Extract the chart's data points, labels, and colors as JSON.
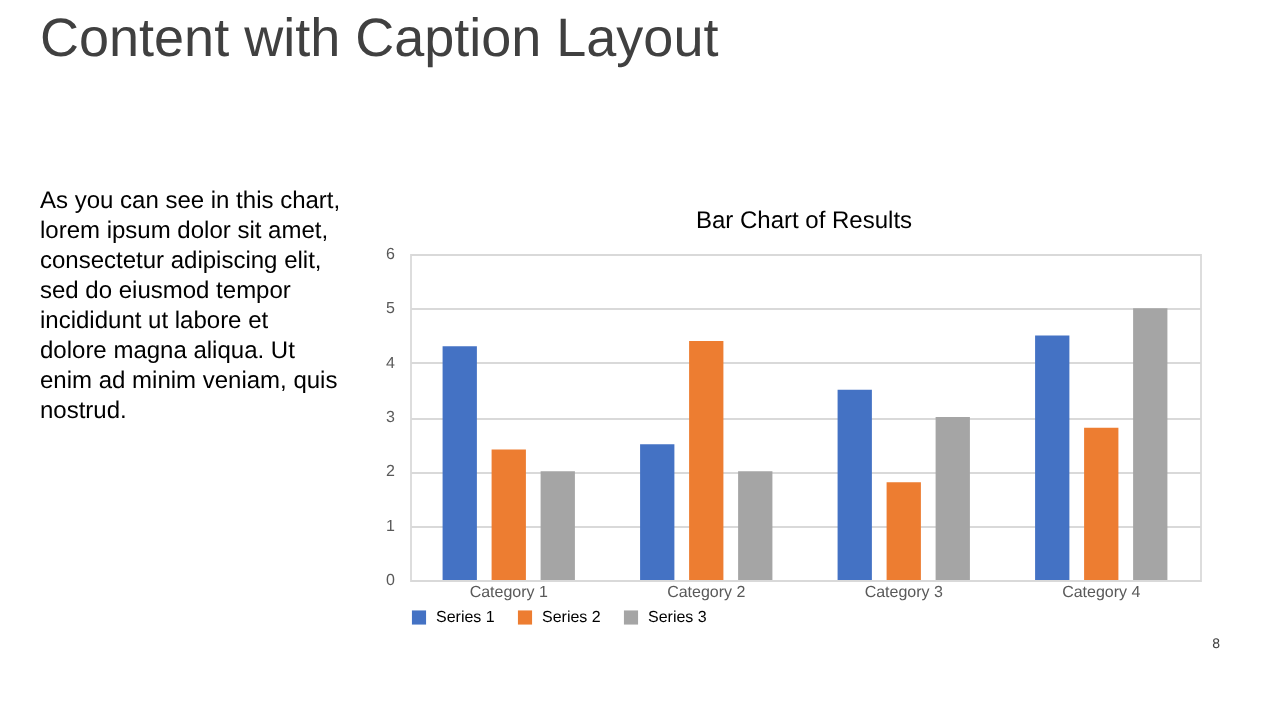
{
  "chart_data": {
    "type": "bar",
    "title": "Bar Chart of Results",
    "categories": [
      "Category 1",
      "Category 2",
      "Category 3",
      "Category 4"
    ],
    "series": [
      {
        "name": "Series 1",
        "color": "#4472c4",
        "values": [
          4.3,
          2.5,
          3.5,
          4.5
        ]
      },
      {
        "name": "Series 2",
        "color": "#ed7d31",
        "values": [
          2.4,
          4.4,
          1.8,
          2.8
        ]
      },
      {
        "name": "Series 3",
        "color": "#a5a5a5",
        "values": [
          2,
          2,
          3,
          5
        ]
      }
    ],
    "ylim": [
      0,
      6
    ],
    "yticks": [
      0,
      1,
      2,
      3,
      4,
      5,
      6
    ],
    "grid": "y",
    "legend": "bottom",
    "annotations": [
      "Content with Caption Layout",
      "As you can see in this chart,\nlorem ipsum dolor sit amet,\nconsectetur adipiscing elit,\nsed do eiusmod tempor\nincididunt ut labore et\ndolore magna aliqua. Ut\nenim ad minim veniam, quis\nnostrud.",
      "8"
    ]
  }
}
